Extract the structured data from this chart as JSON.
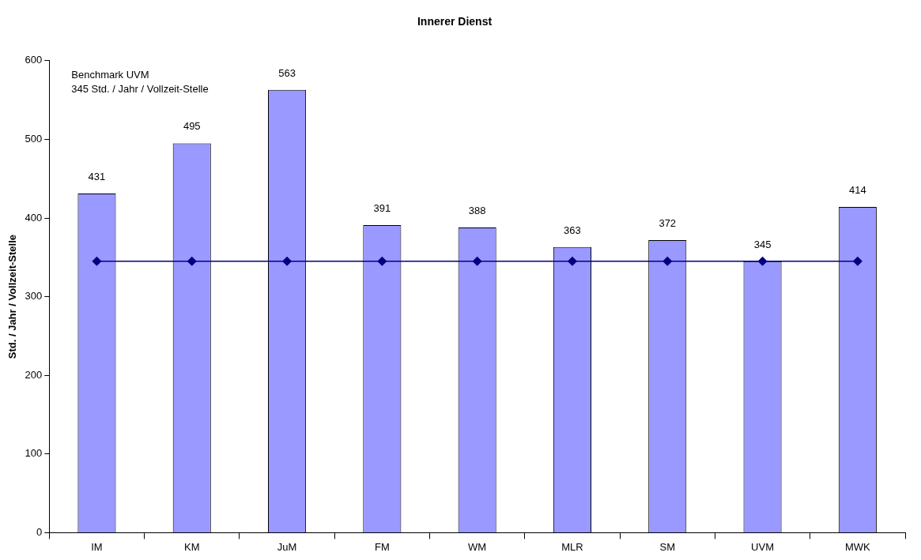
{
  "chart_data": {
    "type": "bar",
    "title": "Innerer Dienst",
    "ylabel": "Std. / Jahr / Vollzeit-Stelle",
    "categories": [
      "IM",
      "KM",
      "JuM",
      "FM",
      "WM",
      "MLR",
      "SM",
      "UVM",
      "MWK"
    ],
    "series": [
      {
        "color": "#9999ff",
        "values": [
          431,
          495,
          563,
          391,
          388,
          363,
          372,
          345,
          414
        ],
        "value_labels": [
          "431",
          "495",
          "563",
          "391",
          "388",
          "363",
          "372",
          "345",
          "414"
        ]
      },
      {
        "type": "line",
        "color": "#000080",
        "marker": "diamond",
        "values": [
          345,
          345,
          345,
          345,
          345,
          345,
          345,
          345,
          345
        ]
      }
    ],
    "ylim": [
      0,
      600
    ],
    "yticks": [
      0,
      100,
      200,
      300,
      400,
      500,
      600
    ],
    "grid": false,
    "legend": false,
    "annotations": [
      "Benchmark UVM",
      "345 Std. / Jahr / Vollzeit-Stelle"
    ]
  }
}
